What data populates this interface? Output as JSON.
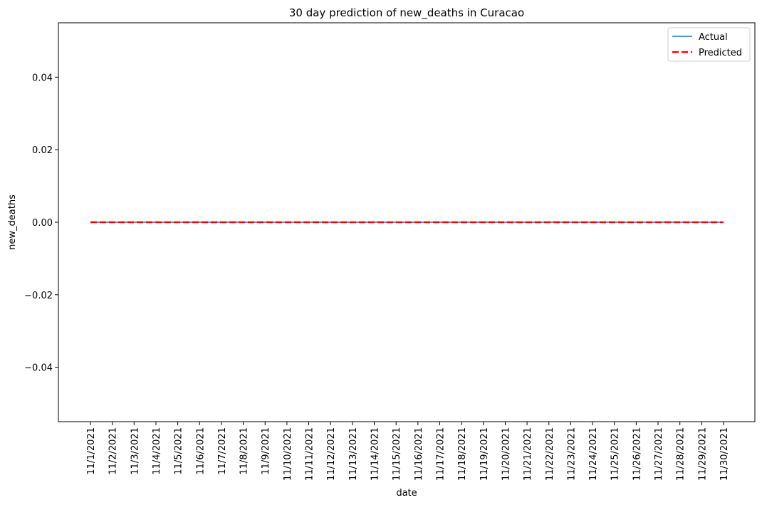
{
  "chart_data": {
    "type": "line",
    "title": "30 day prediction of new_deaths in Curacao",
    "xlabel": "date",
    "ylabel": "new_deaths",
    "x": [
      "11/1/2021",
      "11/2/2021",
      "11/3/2021",
      "11/4/2021",
      "11/5/2021",
      "11/6/2021",
      "11/7/2021",
      "11/8/2021",
      "11/9/2021",
      "11/10/2021",
      "11/11/2021",
      "11/12/2021",
      "11/13/2021",
      "11/14/2021",
      "11/15/2021",
      "11/16/2021",
      "11/17/2021",
      "11/18/2021",
      "11/19/2021",
      "11/20/2021",
      "11/21/2021",
      "11/22/2021",
      "11/23/2021",
      "11/24/2021",
      "11/25/2021",
      "11/26/2021",
      "11/27/2021",
      "11/28/2021",
      "11/29/2021",
      "11/30/2021"
    ],
    "series": [
      {
        "name": "Actual",
        "color": "#1f77b4",
        "style": "solid",
        "values": [
          0,
          0,
          0,
          0,
          0,
          0,
          0,
          0,
          0,
          0,
          0,
          0,
          0,
          0,
          0,
          0,
          0,
          0,
          0,
          0,
          0,
          0,
          0,
          0,
          0,
          0,
          0,
          0,
          0,
          0
        ]
      },
      {
        "name": "Predicted",
        "color": "#ff0000",
        "style": "dashed",
        "values": [
          0,
          0,
          0,
          0,
          0,
          0,
          0,
          0,
          0,
          0,
          0,
          0,
          0,
          0,
          0,
          0,
          0,
          0,
          0,
          0,
          0,
          0,
          0,
          0,
          0,
          0,
          0,
          0,
          0,
          0
        ]
      }
    ],
    "ylim": [
      -0.055,
      0.055
    ],
    "yticks": [
      -0.04,
      -0.02,
      0.0,
      0.02,
      0.04
    ],
    "ytick_labels": [
      "−0.04",
      "−0.02",
      "0.00",
      "0.02",
      "0.04"
    ],
    "grid": false,
    "legend_position": "top-right"
  }
}
